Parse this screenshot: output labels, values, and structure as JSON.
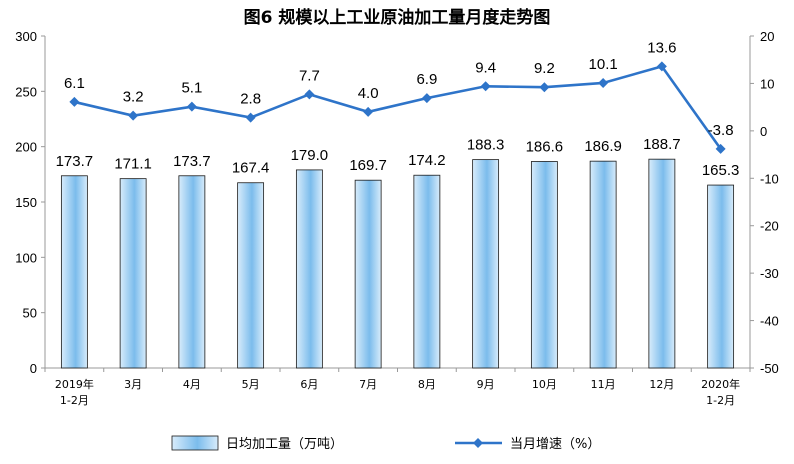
{
  "chart_data": {
    "type": "bar",
    "title": "图6  规模以上工业原油加工量月度走势图",
    "categories": [
      [
        "2019年",
        "1-2月"
      ],
      [
        "3月"
      ],
      [
        "4月"
      ],
      [
        "5月"
      ],
      [
        "6月"
      ],
      [
        "7月"
      ],
      [
        "8月"
      ],
      [
        "9月"
      ],
      [
        "10月"
      ],
      [
        "11月"
      ],
      [
        "12月"
      ],
      [
        "2020年",
        "1-2月"
      ]
    ],
    "series": [
      {
        "name": "日均加工量（万吨）",
        "type": "bar",
        "axis": "left",
        "values": [
          173.7,
          171.1,
          173.7,
          167.4,
          179.0,
          169.7,
          174.2,
          188.3,
          186.6,
          186.9,
          188.7,
          165.3
        ],
        "labels": [
          "173.7",
          "171.1",
          "173.7",
          "167.4",
          "179.0",
          "169.7",
          "174.2",
          "188.3",
          "186.6",
          "186.9",
          "188.7",
          "165.3"
        ]
      },
      {
        "name": "当月增速（%）",
        "type": "line",
        "axis": "right",
        "values": [
          6.1,
          3.2,
          5.1,
          2.8,
          7.7,
          4.0,
          6.9,
          9.4,
          9.2,
          10.1,
          13.6,
          -3.8
        ],
        "labels": [
          "6.1",
          "3.2",
          "5.1",
          "2.8",
          "7.7",
          "4.0",
          "6.9",
          "9.4",
          "9.2",
          "10.1",
          "13.6",
          "-3.8"
        ]
      }
    ],
    "left_axis": {
      "ylim": [
        0,
        300
      ],
      "ticks": [
        0,
        50,
        100,
        150,
        200,
        250,
        300
      ]
    },
    "right_axis": {
      "ylim": [
        -50,
        20
      ],
      "ticks": [
        -50,
        -40,
        -30,
        -20,
        -10,
        0,
        10,
        20
      ]
    },
    "legend_position": "bottom",
    "colors": {
      "bar_fill_top": "#d8ecfb",
      "bar_fill_bottom": "#7bbcec",
      "bar_stroke": "#1a1a1a",
      "line": "#2e74c9",
      "axis": "#999999"
    }
  }
}
